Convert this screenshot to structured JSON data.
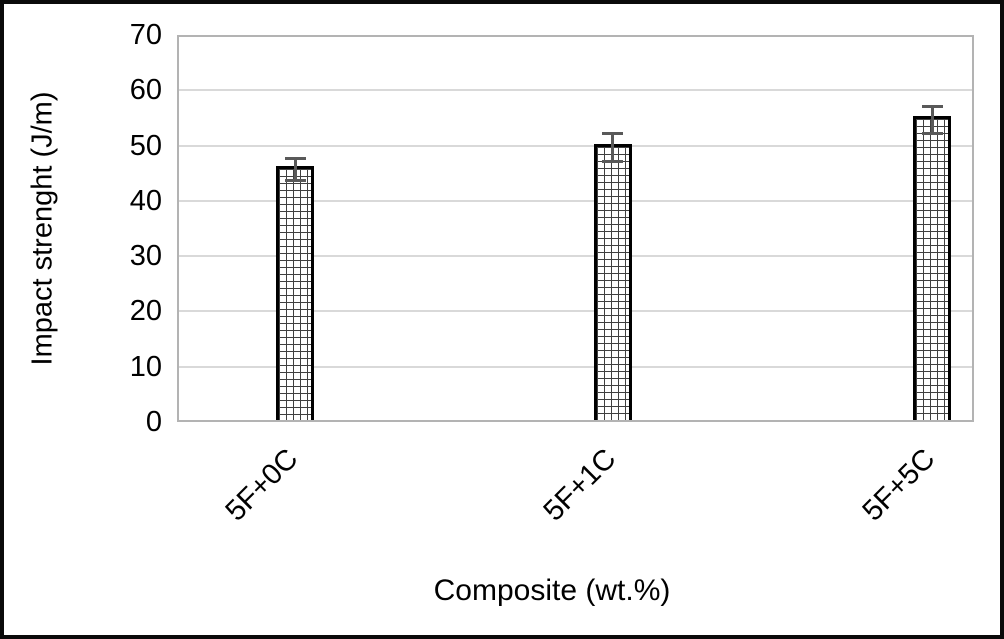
{
  "chart_data": {
    "type": "bar",
    "title": "",
    "categories": [
      "5F+0C",
      "5F+1C",
      "5F+5C"
    ],
    "values": [
      46,
      50,
      55
    ],
    "error_bars": [
      2,
      2.5,
      2.5
    ],
    "xlabel": "Composite (wt.%)",
    "ylabel": "Impact strenght (J/m)",
    "ylim": [
      0,
      70
    ],
    "yticks": [
      0,
      10,
      20,
      30,
      40,
      50,
      60,
      70
    ],
    "grid": true,
    "legend": "none",
    "bar_fill": "white with small-grid pattern",
    "colors": {
      "bar_border": "#000000",
      "bar_pattern_line": "#404040",
      "error_bar": "#595959",
      "gridline": "#d9d9d9",
      "plot_border": "#b3b3b3",
      "figure_border": "#0a0a0a",
      "text": "#000000",
      "background": "#ffffff"
    }
  }
}
